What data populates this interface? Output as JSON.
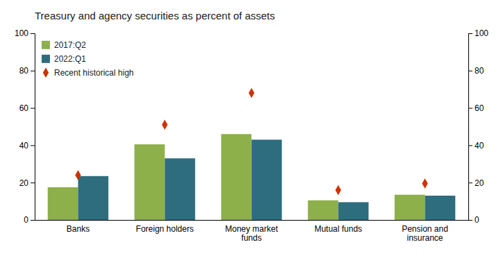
{
  "chart_data": {
    "type": "bar",
    "title": "Treasury and agency securities as percent of assets",
    "categories": [
      "Banks",
      "Foreign holders",
      "Money market\nfunds",
      "Mutual funds",
      "Pension and\ninsurance"
    ],
    "series": [
      {
        "name": "2017:Q2",
        "color": "#8db04a",
        "values": [
          17.5,
          40.5,
          46.0,
          10.5,
          13.5
        ]
      },
      {
        "name": "2022:Q1",
        "color": "#2e6d7e",
        "values": [
          23.5,
          33.0,
          43.0,
          9.5,
          13.0
        ]
      },
      {
        "name": "Recent historical high",
        "type": "scatter",
        "marker": "diamond",
        "color": "#cc3300",
        "values": [
          24.0,
          51.0,
          68.0,
          16.0,
          19.5
        ]
      }
    ],
    "ylim": [
      0,
      100
    ],
    "yticks": [
      0,
      20,
      40,
      60,
      80,
      100
    ],
    "y2lim": [
      0,
      100
    ],
    "y2ticks": [
      0,
      20,
      40,
      60,
      80,
      100
    ],
    "legend": "upper left",
    "grid": false
  }
}
